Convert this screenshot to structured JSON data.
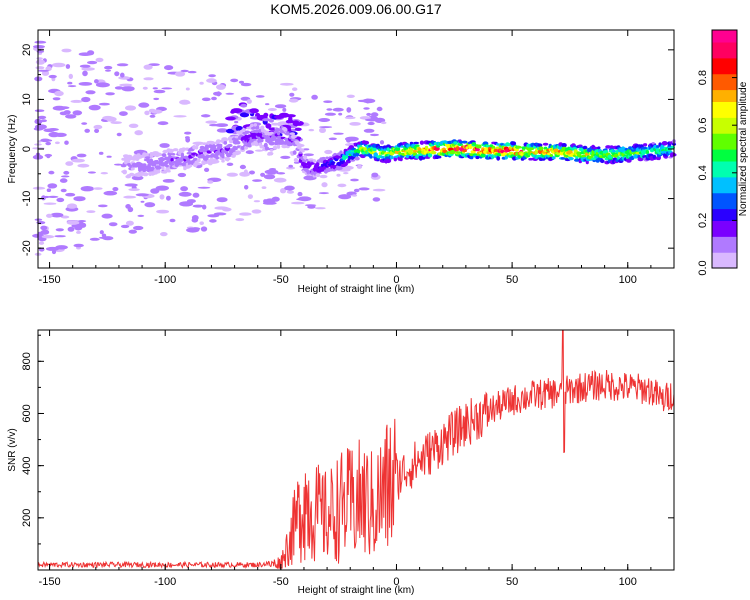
{
  "chart_data": [
    {
      "type": "heatmap",
      "title": "KOM5.2026.009.06.00.G17",
      "xlabel": "Height of straight line (km)",
      "ylabel": "Frequency (Hz)",
      "xlim": [
        -155,
        120
      ],
      "ylim": [
        -24,
        24
      ],
      "xticks": [
        -150,
        -100,
        -50,
        0,
        50,
        100
      ],
      "yticks": [
        -20,
        -10,
        0,
        10,
        20
      ],
      "colorbar": {
        "label": "Normalized spectral amplitude",
        "range": [
          0,
          1
        ],
        "ticks": [
          "0.0",
          "0.2",
          "0.4",
          "0.6",
          "0.8"
        ],
        "tick_values": [
          0,
          0.2,
          0.4,
          0.6,
          0.8
        ]
      },
      "colors": [
        "#d9b8ff",
        "#b07aff",
        "#7a00ff",
        "#2a00ff",
        "#0055ff",
        "#00c0ff",
        "#00ffb0",
        "#00ff40",
        "#60ff00",
        "#c8ff00",
        "#ffff00",
        "#ffb000",
        "#ff5a00",
        "#ff0000",
        "#ff0060",
        "#ff0090"
      ],
      "trace": {
        "x": [
          -115,
          -108,
          -100,
          -92,
          -85,
          -78,
          -72,
          -66,
          -60,
          -55,
          -50,
          -46,
          -40,
          -35,
          -30,
          -25,
          -20,
          -15,
          -10,
          -5,
          0,
          10,
          20,
          30,
          40,
          50,
          60,
          70,
          80,
          90,
          100,
          110,
          120
        ],
        "y": [
          -3.5,
          -3,
          -2.5,
          -2,
          -1,
          -0.5,
          0,
          2,
          3,
          1,
          3,
          2,
          -3,
          -4,
          -3,
          -2.5,
          -1,
          0,
          -0.5,
          -1,
          -0.5,
          -0.3,
          0,
          0,
          -0.3,
          -0.4,
          -0.5,
          -0.6,
          -1,
          -1.2,
          -1,
          -0.5,
          0
        ],
        "amplitude": [
          0.08,
          0.1,
          0.12,
          0.12,
          0.13,
          0.14,
          0.12,
          0.15,
          0.14,
          0.12,
          0.15,
          0.13,
          0.17,
          0.2,
          0.22,
          0.3,
          0.42,
          0.55,
          0.6,
          0.55,
          0.65,
          0.75,
          0.88,
          0.92,
          0.8,
          0.92,
          0.7,
          0.8,
          0.65,
          0.55,
          0.55,
          0.5,
          0.4
        ]
      },
      "high_branch": {
        "x": [
          -70,
          -66,
          -62,
          -58,
          -54,
          -50,
          -47,
          -44
        ],
        "y": [
          5,
          7,
          6,
          4,
          5,
          5,
          6,
          4
        ]
      }
    },
    {
      "type": "line",
      "xlabel": "Height of straight line (km)",
      "ylabel": "SNR (v/v)",
      "xlim": [
        -155,
        120
      ],
      "ylim": [
        0,
        920
      ],
      "xticks": [
        -150,
        -100,
        -50,
        0,
        50,
        100
      ],
      "yticks": [
        200,
        400,
        600,
        800
      ],
      "color": "#ee3333",
      "series": [
        {
          "name": "SNR",
          "x": [
            -155,
            -100,
            -60,
            -55,
            -50,
            -45,
            -40,
            -35,
            -30,
            -25,
            -20,
            -15,
            -10,
            -5,
            0,
            5,
            10,
            20,
            30,
            40,
            50,
            60,
            70,
            72,
            75,
            80,
            90,
            100,
            110,
            115,
            120
          ],
          "y": [
            15,
            15,
            15,
            20,
            30,
            140,
            270,
            220,
            200,
            240,
            250,
            270,
            240,
            300,
            350,
            390,
            420,
            490,
            560,
            610,
            650,
            670,
            680,
            680,
            690,
            700,
            710,
            700,
            690,
            650,
            680
          ]
        }
      ]
    }
  ]
}
